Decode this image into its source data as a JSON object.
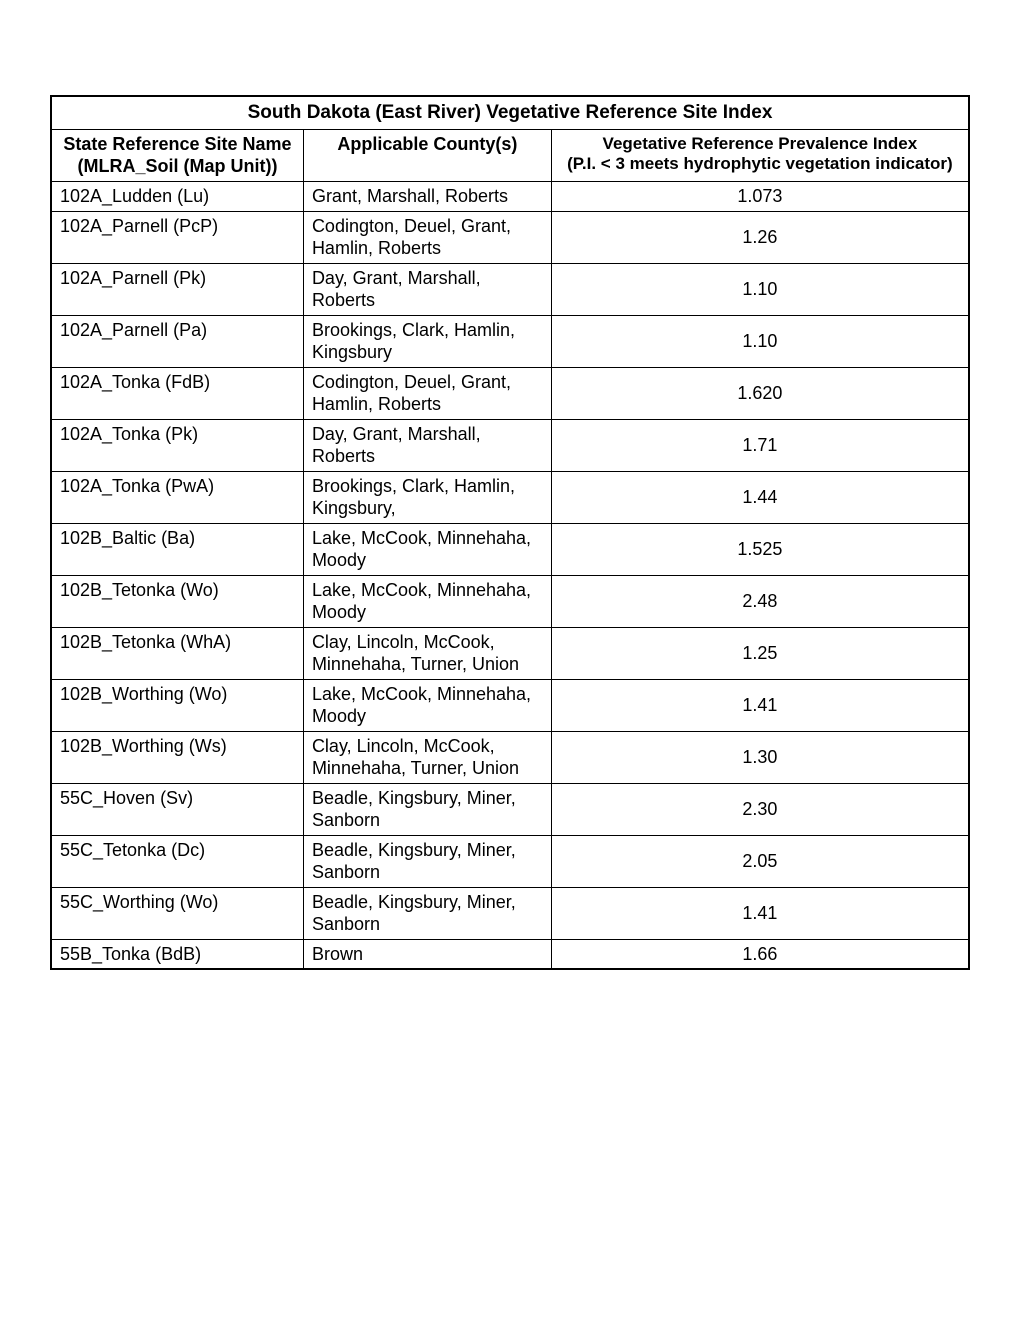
{
  "table": {
    "title": "South Dakota (East River) Vegetative Reference Site Index",
    "columns": [
      {
        "line1": "State Reference Site Name",
        "line2": "(MLRA_Soil (Map Unit))"
      },
      {
        "line1": "Applicable County(s)"
      },
      {
        "line1": "Vegetative Reference Prevalence Index",
        "line2": "(P.I. < 3 meets hydrophytic vegetation indicator)"
      }
    ],
    "rows": [
      {
        "site": "102A_Ludden (Lu)",
        "county": "Grant, Marshall, Roberts",
        "index": "1.073"
      },
      {
        "site": "102A_Parnell (PcP)",
        "county": "Codington, Deuel, Grant, Hamlin, Roberts",
        "index": "1.26"
      },
      {
        "site": "102A_Parnell (Pk)",
        "county": "Day, Grant, Marshall, Roberts",
        "index": "1.10"
      },
      {
        "site": "102A_Parnell (Pa)",
        "county": "Brookings, Clark, Hamlin, Kingsbury",
        "index": "1.10"
      },
      {
        "site": "102A_Tonka (FdB)",
        "county": "Codington, Deuel, Grant, Hamlin, Roberts",
        "index": "1.620"
      },
      {
        "site": "102A_Tonka (Pk)",
        "county": "Day, Grant, Marshall, Roberts",
        "index": "1.71"
      },
      {
        "site": "102A_Tonka (PwA)",
        "county": "Brookings, Clark, Hamlin, Kingsbury,",
        "index": "1.44"
      },
      {
        "site": "102B_Baltic (Ba)",
        "county": "Lake, McCook, Minnehaha, Moody",
        "index": "1.525"
      },
      {
        "site": "102B_Tetonka (Wo)",
        "county": "Lake, McCook, Minnehaha, Moody",
        "index": "2.48"
      },
      {
        "site": "102B_Tetonka (WhA)",
        "county": "Clay, Lincoln, McCook, Minnehaha, Turner, Union",
        "index": "1.25"
      },
      {
        "site": "102B_Worthing (Wo)",
        "county": "Lake, McCook, Minnehaha, Moody",
        "index": "1.41"
      },
      {
        "site": "102B_Worthing (Ws)",
        "county": "Clay, Lincoln, McCook, Minnehaha, Turner, Union",
        "index": "1.30"
      },
      {
        "site": "55C_Hoven (Sv)",
        "county": "Beadle, Kingsbury, Miner, Sanborn",
        "index": "2.30"
      },
      {
        "site": "55C_Tetonka (Dc)",
        "county": "Beadle, Kingsbury, Miner, Sanborn",
        "index": "2.05"
      },
      {
        "site": "55C_Worthing (Wo)",
        "county": "Beadle, Kingsbury, Miner, Sanborn",
        "index": "1.41"
      },
      {
        "site": "55B_Tonka (BdB)",
        "county": "Brown",
        "index": "1.66"
      }
    ],
    "styling": {
      "border_color": "#000000",
      "background_color": "#ffffff",
      "text_color": "#000000",
      "font_family": "Arial",
      "title_fontsize": 19,
      "header_fontsize": 18,
      "cell_fontsize": 18,
      "col_widths_pct": [
        27.5,
        27,
        45.5
      ]
    }
  }
}
